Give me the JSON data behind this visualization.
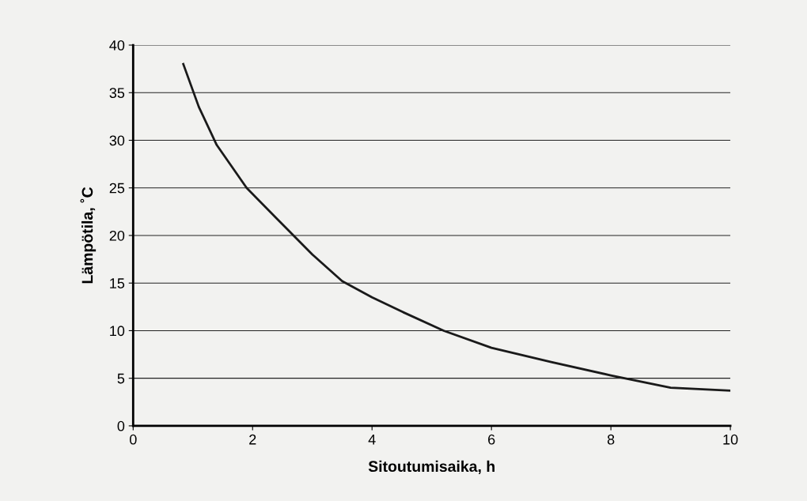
{
  "chart_data": {
    "type": "line",
    "xlabel": "Sitoutumisaika, h",
    "ylabel": "Lämpötila, ˚C",
    "x": [
      0.84,
      1.1,
      1.4,
      1.9,
      2.4,
      3.0,
      3.5,
      4.0,
      4.5,
      5.2,
      6.0,
      7.0,
      8.0,
      9.0,
      10.0
    ],
    "series": [
      {
        "color": "#1a1a1a",
        "values": [
          38,
          33.5,
          29.5,
          25,
          21.8,
          18,
          15.2,
          13.5,
          12,
          10,
          8.2,
          6.7,
          5.3,
          4,
          3.7
        ]
      }
    ],
    "xlim": [
      0,
      10
    ],
    "ylim": [
      0,
      40
    ],
    "xticks": [
      0,
      2,
      4,
      6,
      8,
      10
    ],
    "yticks": [
      0,
      5,
      10,
      15,
      20,
      25,
      30,
      35,
      40
    ],
    "grid": "y",
    "marker": "none",
    "line_style": "solid"
  }
}
